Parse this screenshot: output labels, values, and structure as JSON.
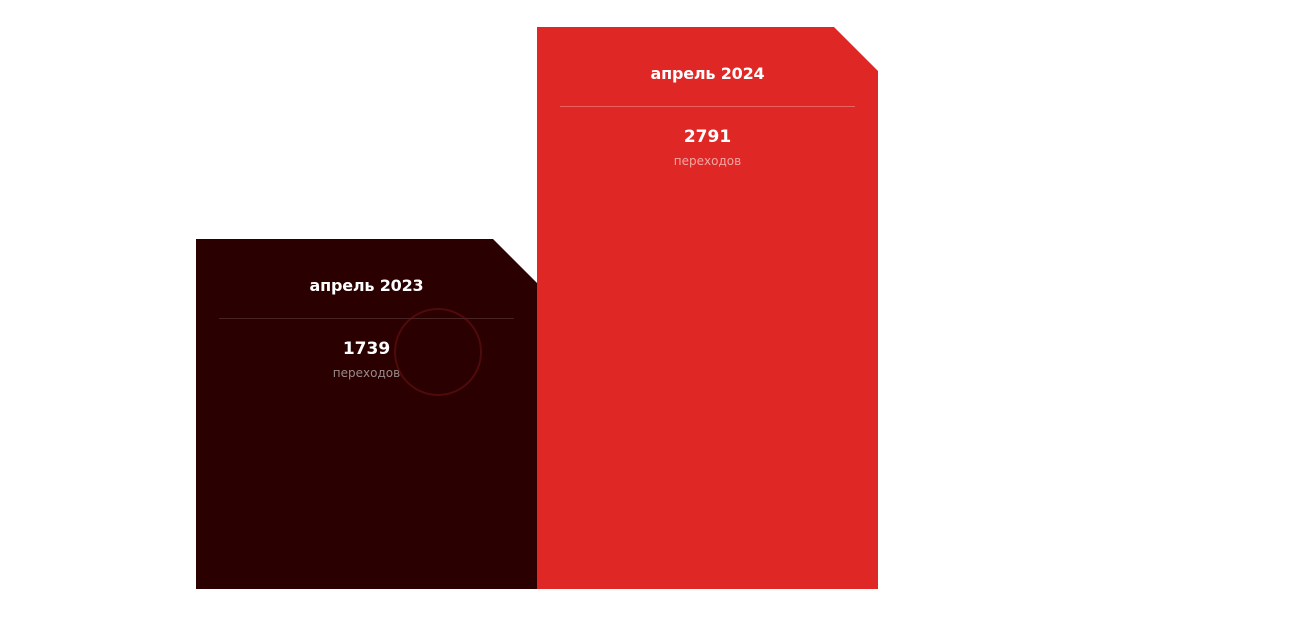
{
  "chart_data": {
    "type": "bar",
    "categories": [
      "апрель 2023",
      "апрель 2024"
    ],
    "values": [
      1739,
      2791
    ],
    "unit_label": "переходов",
    "title": "",
    "xlabel": "",
    "ylabel": "",
    "colors": [
      "#2a0000",
      "#df2826"
    ]
  }
}
